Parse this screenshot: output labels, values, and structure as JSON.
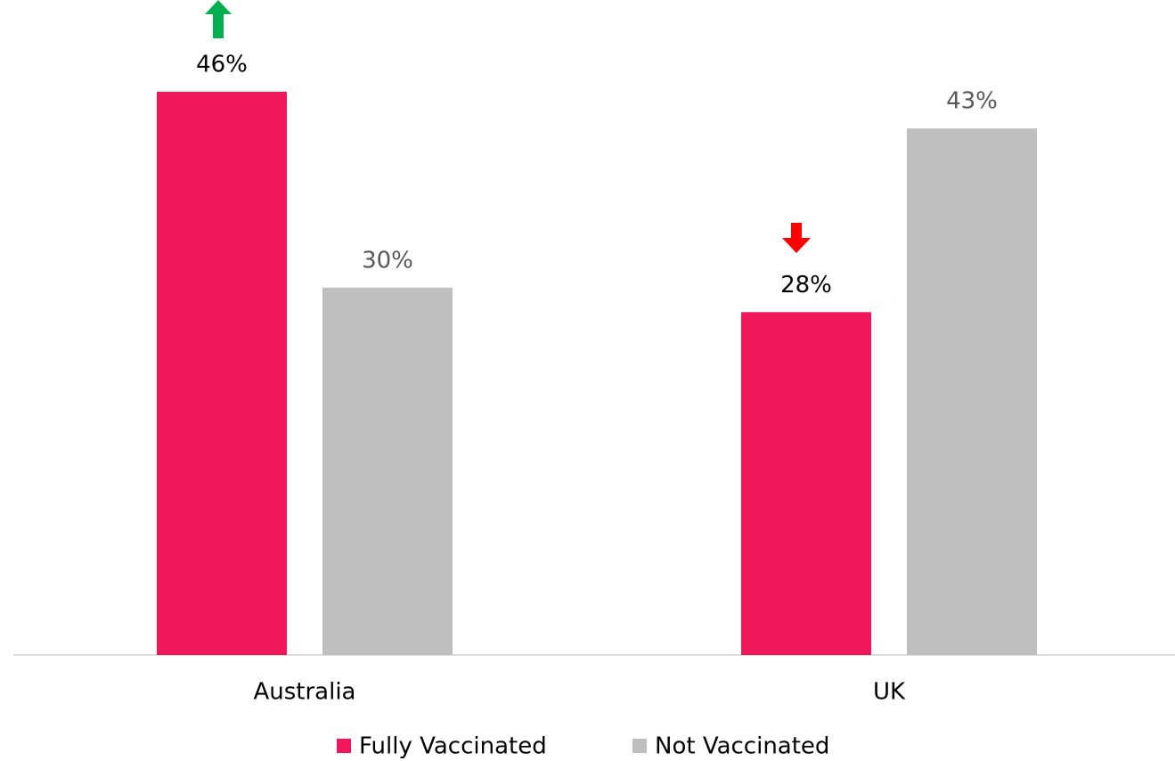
{
  "chart_data": {
    "type": "bar",
    "categories": [
      "Australia",
      "UK"
    ],
    "series": [
      {
        "name": "Fully Vaccinated",
        "color": "#f0185a",
        "label_color": "#000000",
        "values": [
          46,
          28
        ],
        "value_labels": [
          "46%",
          "28%"
        ]
      },
      {
        "name": "Not Vaccinated",
        "color": "#bfbfbf",
        "label_color": "#595959",
        "values": [
          30,
          43
        ],
        "value_labels": [
          "30%",
          "43%"
        ]
      }
    ],
    "ylim": [
      0,
      50
    ],
    "legend": "bottom"
  }
}
